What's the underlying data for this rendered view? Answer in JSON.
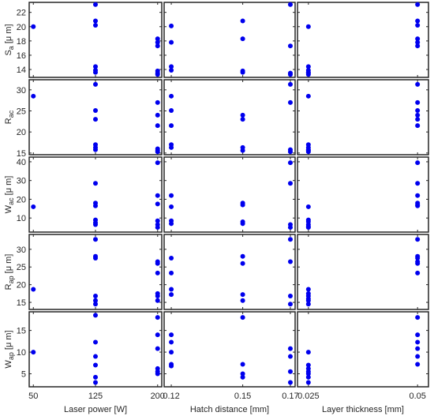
{
  "chart_data": {
    "type": "scatter",
    "marker_color": "#0000ee",
    "grid": false,
    "columns": [
      {
        "xlabel": "Laser power [W]",
        "ticks": [
          50,
          125,
          200
        ],
        "tick_labels": [
          "50",
          "125",
          "200"
        ],
        "xlim": [
          45,
          205
        ]
      },
      {
        "xlabel": "Hatch distance [mm]",
        "ticks": [
          0.12,
          0.15,
          0.17
        ],
        "tick_labels": [
          "0.12",
          "0.15",
          "0.17"
        ],
        "xlim": [
          0.117,
          0.172
        ]
      },
      {
        "xlabel": "Layer thickness [mm]",
        "ticks": [
          0.025,
          0.05
        ],
        "tick_labels": [
          "0.025",
          "0.05"
        ],
        "xlim": [
          0.0225,
          0.0525
        ]
      }
    ],
    "rows": [
      {
        "ylabel_main": "S",
        "ylabel_sub": "a",
        "ylabel_unit": " [μ m]",
        "ylim": [
          12.9,
          23.4
        ],
        "ticks": [
          14,
          16,
          18,
          20,
          22
        ],
        "tick_labels": [
          "14",
          "16",
          "18",
          "20",
          "22"
        ],
        "points": [
          [
            [
              50,
              20.0
            ],
            [
              125,
              23.1
            ],
            [
              125,
              20.8
            ],
            [
              125,
              20.2
            ],
            [
              125,
              14.4
            ],
            [
              125,
              13.9
            ],
            [
              125,
              13.6
            ],
            [
              200,
              18.3
            ],
            [
              200,
              17.8
            ],
            [
              200,
              17.3
            ],
            [
              200,
              13.8
            ],
            [
              200,
              13.5
            ],
            [
              200,
              13.3
            ]
          ],
          [
            [
              0.12,
              20.1
            ],
            [
              0.12,
              17.8
            ],
            [
              0.12,
              14.4
            ],
            [
              0.12,
              13.9
            ],
            [
              0.15,
              20.8
            ],
            [
              0.15,
              18.3
            ],
            [
              0.15,
              13.8
            ],
            [
              0.15,
              13.6
            ],
            [
              0.17,
              23.1
            ],
            [
              0.17,
              17.3
            ],
            [
              0.17,
              13.5
            ],
            [
              0.17,
              13.3
            ]
          ],
          [
            [
              0.025,
              20.0
            ],
            [
              0.025,
              14.4
            ],
            [
              0.025,
              13.9
            ],
            [
              0.025,
              13.6
            ],
            [
              0.025,
              13.5
            ],
            [
              0.025,
              13.3
            ],
            [
              0.05,
              23.1
            ],
            [
              0.05,
              20.8
            ],
            [
              0.05,
              20.2
            ],
            [
              0.05,
              18.3
            ],
            [
              0.05,
              17.8
            ],
            [
              0.05,
              17.3
            ]
          ]
        ]
      },
      {
        "ylabel_main": "R",
        "ylabel_sub": "ac",
        "ylabel_unit": "",
        "ylim": [
          14.6,
          32.4
        ],
        "ticks": [
          15,
          20,
          25,
          30
        ],
        "tick_labels": [
          "15",
          "20",
          "25",
          "30"
        ],
        "points": [
          [
            [
              50,
              28.5
            ],
            [
              125,
              31.3
            ],
            [
              125,
              25.1
            ],
            [
              125,
              23.0
            ],
            [
              125,
              17.0
            ],
            [
              125,
              16.3
            ],
            [
              125,
              15.8
            ],
            [
              200,
              27.0
            ],
            [
              200,
              24.0
            ],
            [
              200,
              21.5
            ],
            [
              200,
              16.0
            ],
            [
              200,
              15.6
            ],
            [
              200,
              15.3
            ]
          ],
          [
            [
              0.12,
              28.5
            ],
            [
              0.12,
              25.1
            ],
            [
              0.12,
              21.5
            ],
            [
              0.12,
              17.0
            ],
            [
              0.12,
              16.3
            ],
            [
              0.15,
              24.0
            ],
            [
              0.15,
              23.0
            ],
            [
              0.15,
              16.3
            ],
            [
              0.15,
              15.6
            ],
            [
              0.17,
              31.3
            ],
            [
              0.17,
              27.0
            ],
            [
              0.17,
              15.8
            ],
            [
              0.17,
              15.3
            ]
          ],
          [
            [
              0.025,
              28.5
            ],
            [
              0.025,
              17.0
            ],
            [
              0.025,
              16.3
            ],
            [
              0.025,
              15.8
            ],
            [
              0.025,
              15.6
            ],
            [
              0.025,
              15.3
            ],
            [
              0.05,
              31.3
            ],
            [
              0.05,
              27.0
            ],
            [
              0.05,
              25.1
            ],
            [
              0.05,
              24.0
            ],
            [
              0.05,
              23.0
            ],
            [
              0.05,
              21.5
            ]
          ]
        ]
      },
      {
        "ylabel_main": "W",
        "ylabel_sub": "ac",
        "ylabel_unit": " [μ m]",
        "ylim": [
          2.5,
          42.5
        ],
        "ticks": [
          10,
          20,
          30,
          40
        ],
        "tick_labels": [
          "10",
          "20",
          "30",
          "40"
        ],
        "points": [
          [
            [
              50,
              16.0
            ],
            [
              125,
              28.5
            ],
            [
              125,
              18.0
            ],
            [
              125,
              16.5
            ],
            [
              125,
              9.0
            ],
            [
              125,
              7.5
            ],
            [
              125,
              6.5
            ],
            [
              200,
              39.5
            ],
            [
              200,
              22.0
            ],
            [
              200,
              17.5
            ],
            [
              200,
              8.5
            ],
            [
              200,
              6.5
            ],
            [
              200,
              5.0
            ]
          ],
          [
            [
              0.12,
              22.0
            ],
            [
              0.12,
              16.0
            ],
            [
              0.12,
              8.5
            ],
            [
              0.12,
              7.0
            ],
            [
              0.15,
              18.0
            ],
            [
              0.15,
              17.0
            ],
            [
              0.15,
              8.0
            ],
            [
              0.15,
              7.0
            ],
            [
              0.17,
              39.5
            ],
            [
              0.17,
              28.5
            ],
            [
              0.17,
              6.5
            ],
            [
              0.17,
              5.0
            ]
          ],
          [
            [
              0.025,
              16.0
            ],
            [
              0.025,
              9.0
            ],
            [
              0.025,
              8.0
            ],
            [
              0.025,
              6.5
            ],
            [
              0.025,
              5.5
            ],
            [
              0.025,
              5.0
            ],
            [
              0.05,
              39.5
            ],
            [
              0.05,
              28.5
            ],
            [
              0.05,
              22.0
            ],
            [
              0.05,
              18.0
            ],
            [
              0.05,
              17.0
            ],
            [
              0.05,
              16.5
            ]
          ]
        ]
      },
      {
        "ylabel_main": "R",
        "ylabel_sub": "ap",
        "ylabel_unit": " [μ m]",
        "ylim": [
          13.0,
          34.2
        ],
        "ticks": [
          15,
          20,
          25,
          30
        ],
        "tick_labels": [
          "15",
          "20",
          "25",
          "30"
        ],
        "points": [
          [
            [
              50,
              18.7
            ],
            [
              125,
              32.8
            ],
            [
              125,
              28.0
            ],
            [
              125,
              27.5
            ],
            [
              125,
              16.8
            ],
            [
              125,
              15.5
            ],
            [
              125,
              14.5
            ],
            [
              200,
              26.5
            ],
            [
              200,
              26.0
            ],
            [
              200,
              23.3
            ],
            [
              200,
              17.5
            ],
            [
              200,
              16.8
            ],
            [
              200,
              15.5
            ]
          ],
          [
            [
              0.12,
              27.5
            ],
            [
              0.12,
              23.3
            ],
            [
              0.12,
              18.7
            ],
            [
              0.12,
              17.2
            ],
            [
              0.15,
              28.0
            ],
            [
              0.15,
              26.0
            ],
            [
              0.15,
              17.2
            ],
            [
              0.15,
              15.5
            ],
            [
              0.17,
              32.8
            ],
            [
              0.17,
              26.5
            ],
            [
              0.17,
              16.8
            ],
            [
              0.17,
              14.5
            ]
          ],
          [
            [
              0.025,
              18.7
            ],
            [
              0.025,
              17.5
            ],
            [
              0.025,
              16.8
            ],
            [
              0.025,
              16.0
            ],
            [
              0.025,
              15.5
            ],
            [
              0.025,
              14.5
            ],
            [
              0.05,
              32.8
            ],
            [
              0.05,
              28.0
            ],
            [
              0.05,
              27.5
            ],
            [
              0.05,
              26.5
            ],
            [
              0.05,
              26.0
            ],
            [
              0.05,
              23.3
            ]
          ]
        ]
      },
      {
        "ylabel_main": "W",
        "ylabel_sub": "ap",
        "ylabel_unit": " [μ m]",
        "ylim": [
          2.0,
          19.3
        ],
        "ticks": [
          5,
          10,
          15
        ],
        "tick_labels": [
          "5",
          "10",
          "15"
        ],
        "points": [
          [
            [
              50,
              10.0
            ],
            [
              125,
              18.5
            ],
            [
              125,
              12.3
            ],
            [
              125,
              9.0
            ],
            [
              125,
              7.0
            ],
            [
              125,
              4.2
            ],
            [
              125,
              3.0
            ],
            [
              200,
              18.0
            ],
            [
              200,
              14.0
            ],
            [
              200,
              10.8
            ],
            [
              200,
              6.2
            ],
            [
              200,
              5.5
            ],
            [
              200,
              5.0
            ]
          ],
          [
            [
              0.12,
              14.0
            ],
            [
              0.12,
              12.3
            ],
            [
              0.12,
              10.0
            ],
            [
              0.12,
              7.2
            ],
            [
              0.12,
              6.8
            ],
            [
              0.15,
              18.0
            ],
            [
              0.15,
              7.2
            ],
            [
              0.15,
              5.0
            ],
            [
              0.15,
              4.2
            ],
            [
              0.17,
              10.8
            ],
            [
              0.17,
              9.0
            ],
            [
              0.17,
              5.5
            ],
            [
              0.17,
              3.0
            ]
          ],
          [
            [
              0.025,
              10.0
            ],
            [
              0.025,
              7.0
            ],
            [
              0.025,
              6.2
            ],
            [
              0.025,
              5.5
            ],
            [
              0.025,
              5.0
            ],
            [
              0.025,
              4.2
            ],
            [
              0.025,
              3.0
            ],
            [
              0.05,
              18.0
            ],
            [
              0.05,
              14.0
            ],
            [
              0.05,
              12.3
            ],
            [
              0.05,
              10.8
            ],
            [
              0.05,
              9.0
            ],
            [
              0.05,
              7.2
            ]
          ]
        ]
      }
    ]
  }
}
